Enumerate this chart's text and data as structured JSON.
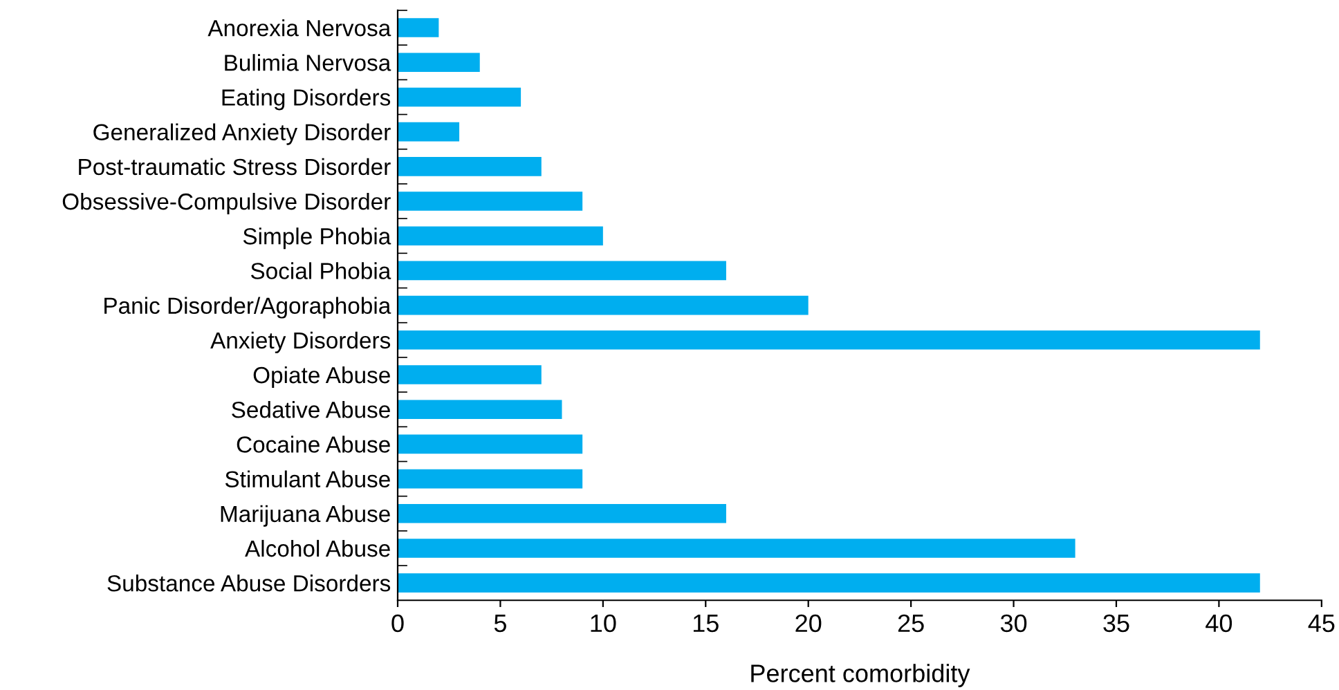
{
  "chart_data": {
    "type": "bar",
    "orientation": "horizontal",
    "xlabel": "Percent comorbidity",
    "categories": [
      "Anorexia Nervosa",
      "Bulimia Nervosa",
      "Eating Disorders",
      "Generalized Anxiety Disorder",
      "Post-traumatic Stress Disorder",
      "Obsessive-Compulsive Disorder",
      "Simple Phobia",
      "Social Phobia",
      "Panic Disorder/Agoraphobia",
      "Anxiety Disorders",
      "Opiate Abuse",
      "Sedative Abuse",
      "Cocaine Abuse",
      "Stimulant Abuse",
      "Marijuana Abuse",
      "Alcohol Abuse",
      "Substance Abuse Disorders"
    ],
    "values": [
      2,
      4,
      6,
      3,
      7,
      9,
      10,
      16,
      20,
      42,
      7,
      8,
      9,
      9,
      16,
      33,
      42
    ],
    "color": "#00aeef",
    "xlim": [
      0,
      45
    ],
    "xticks": [
      0,
      5,
      10,
      15,
      20,
      25,
      30,
      35,
      40,
      45
    ],
    "grid": false,
    "legend": false
  }
}
